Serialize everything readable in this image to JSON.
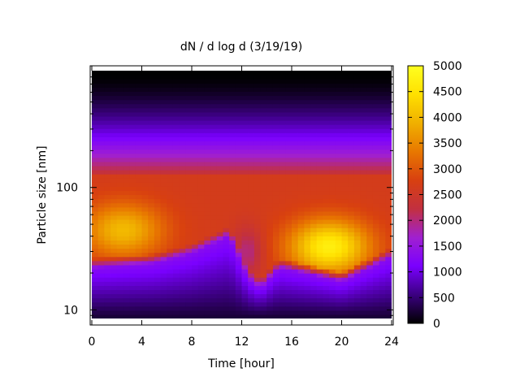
{
  "chart_data": {
    "type": "heatmap",
    "title": "dN / d log d (3/19/19)",
    "xlabel": "Time [hour]",
    "ylabel": "Particle size [nm]",
    "x_range": [
      0,
      24
    ],
    "y_range_nm": [
      8.5,
      900
    ],
    "y_scale": "log",
    "x_ticks": [
      0,
      4,
      8,
      12,
      16,
      20,
      24
    ],
    "x_tick_labels": [
      "0",
      "4",
      "8",
      "12",
      "16",
      "20",
      "24"
    ],
    "y_ticks": [
      10,
      100
    ],
    "y_tick_labels": [
      "10",
      "100"
    ],
    "color_range": [
      0,
      5000
    ],
    "colorbar_ticks": [
      0,
      500,
      1000,
      1500,
      2000,
      2500,
      3000,
      3500,
      4000,
      4500,
      5000
    ],
    "colorbar_tick_labels": [
      "0",
      "500",
      "1000",
      "1500",
      "2000",
      "2500",
      "3000",
      "3500",
      "4000",
      "4500",
      "5000"
    ],
    "colormap": [
      "#000000",
      "#3b0080",
      "#7a00ff",
      "#a020d0",
      "#c23040",
      "#d84010",
      "#e87800",
      "#f0b000",
      "#ffe000",
      "#ffff20"
    ],
    "bimodal_peaks": [
      {
        "time": 2.5,
        "size_nm": 45,
        "value": 4000
      },
      {
        "time": 19.0,
        "size_nm": 33,
        "value": 4700
      }
    ],
    "lower_edge_nm": [
      {
        "time": 0,
        "size_nm": 22
      },
      {
        "time": 5,
        "size_nm": 24
      },
      {
        "time": 8,
        "size_nm": 29
      },
      {
        "time": 11,
        "size_nm": 40
      },
      {
        "time": 12.5,
        "size_nm": 18
      },
      {
        "time": 13.5,
        "size_nm": 15
      },
      {
        "time": 15,
        "size_nm": 22
      },
      {
        "time": 17,
        "size_nm": 20
      },
      {
        "time": 20,
        "size_nm": 17
      },
      {
        "time": 24,
        "size_nm": 27
      }
    ]
  }
}
